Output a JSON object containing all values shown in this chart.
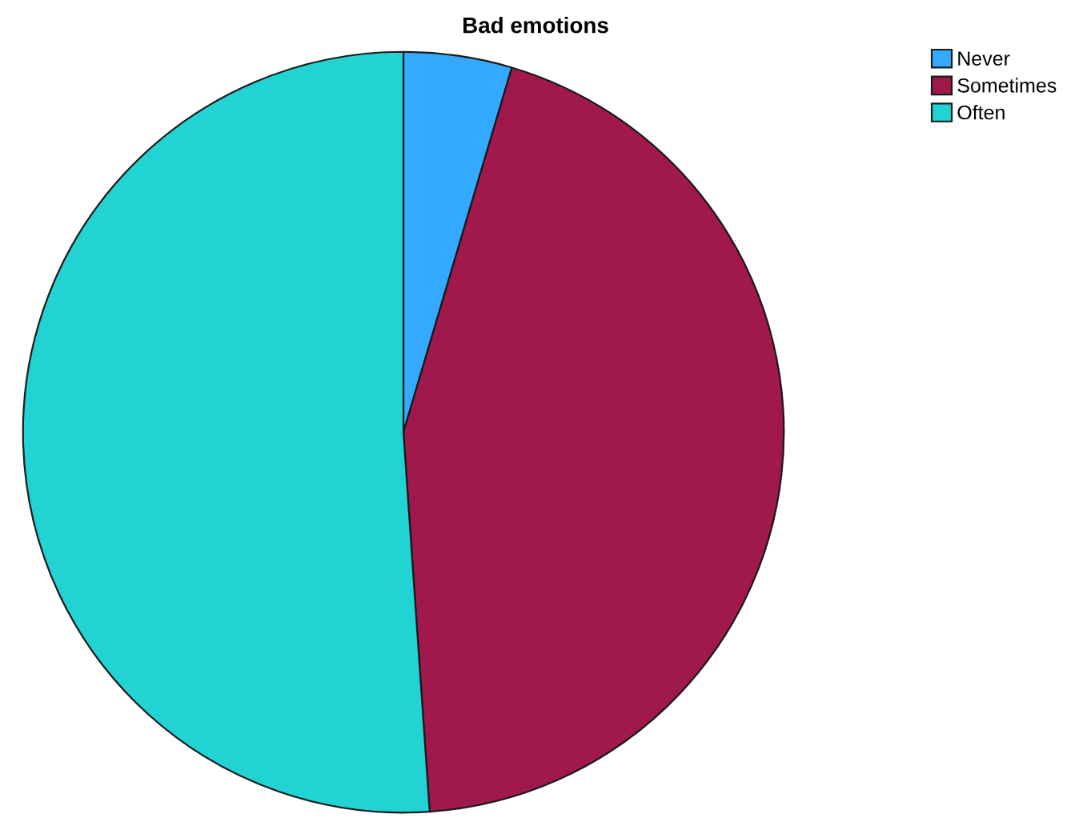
{
  "chart_data": {
    "type": "pie",
    "title": "Bad emotions",
    "categories": [
      "Never",
      "Sometimes",
      "Often"
    ],
    "values": [
      4.6,
      44.3,
      51.1
    ],
    "colors": [
      "#33aaff",
      "#a1184c",
      "#21d3d3"
    ],
    "legend": "top right"
  }
}
